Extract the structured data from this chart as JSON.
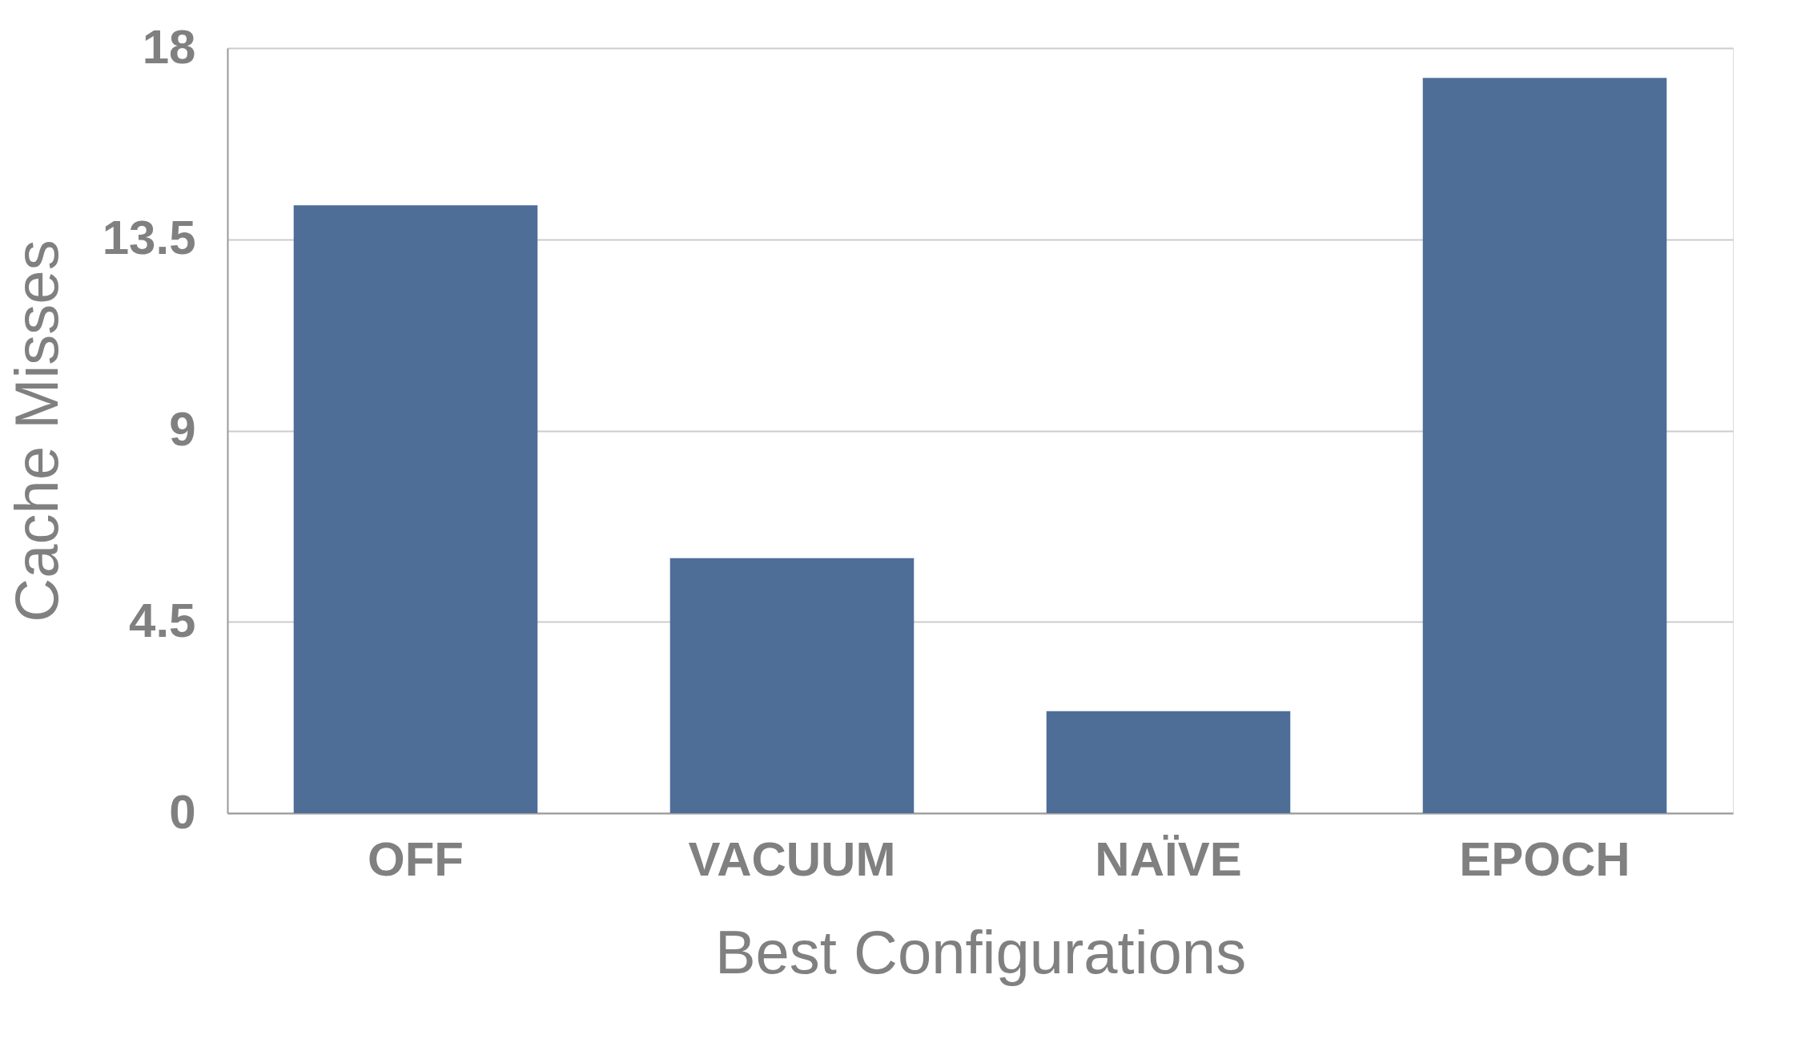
{
  "chart_data": {
    "type": "bar",
    "xlabel": "Best Configurations",
    "ylabel": "Cache Misses",
    "categories": [
      "OFF",
      "VACUUM",
      "NAÏVE",
      "EPOCH"
    ],
    "values": [
      14.3,
      6.0,
      2.4,
      17.3
    ],
    "color": "#4e6e98",
    "ylim": [
      0,
      18
    ],
    "yticks": [
      0,
      4.5,
      9,
      13.5,
      18
    ],
    "grid": "y"
  }
}
